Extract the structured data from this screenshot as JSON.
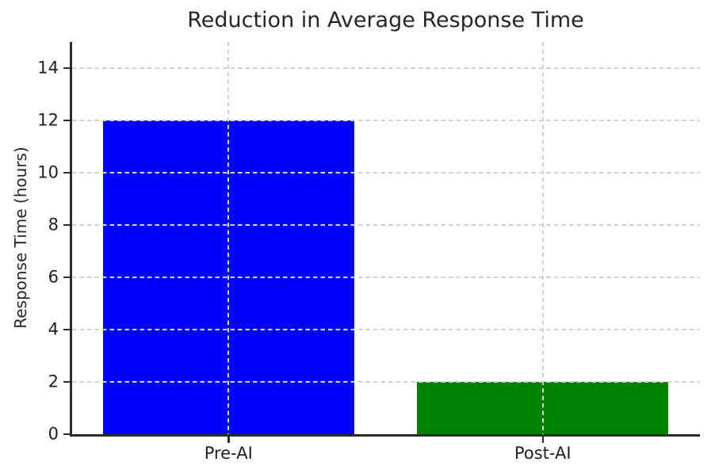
{
  "chart_data": {
    "type": "bar",
    "title": "Reduction in Average Response Time",
    "xlabel": "",
    "ylabel": "Response Time (hours)",
    "categories": [
      "Pre-AI",
      "Post-AI"
    ],
    "values": [
      12,
      2
    ],
    "bar_colors": [
      "#0000ff",
      "#008000"
    ],
    "ylim": [
      0,
      15
    ],
    "yticks": [
      0,
      2,
      4,
      6,
      8,
      10,
      12,
      14
    ],
    "bar_width_fraction": 0.8,
    "grid": true,
    "grid_style": "dashed",
    "grid_color": "#d2d2d2",
    "grid_above_bars": true,
    "legend": "none",
    "spines": [
      "left",
      "bottom"
    ]
  }
}
